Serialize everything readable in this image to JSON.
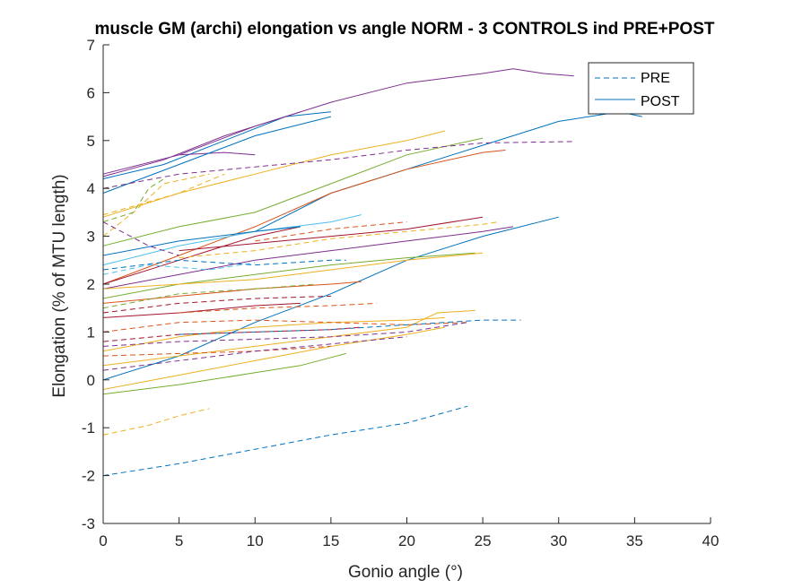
{
  "chart_data": {
    "type": "line",
    "title": "muscle GM (archi) elongation vs angle NORM - 3 CONTROLS ind PRE+POST",
    "xlabel": "Gonio angle (°)",
    "ylabel": "Elongation (% of MTU length)",
    "xlim": [
      0,
      40
    ],
    "ylim": [
      -3,
      7
    ],
    "xticks": [
      0,
      5,
      10,
      15,
      20,
      25,
      30,
      35,
      40
    ],
    "yticks": [
      -3,
      -2,
      -1,
      0,
      1,
      2,
      3,
      4,
      5,
      6,
      7
    ],
    "grid": false,
    "legend": {
      "placement": "top-right",
      "entries": [
        {
          "label": "PRE",
          "style": "dashed",
          "color": "#0072bd"
        },
        {
          "label": "POST",
          "style": "solid",
          "color": "#0072bd"
        }
      ]
    },
    "series": [
      {
        "style": "solid",
        "color": "#7e2f8e",
        "points": [
          [
            0,
            4.3
          ],
          [
            5,
            4.7
          ],
          [
            10,
            5.3
          ],
          [
            15,
            5.8
          ],
          [
            20,
            6.2
          ],
          [
            25,
            6.4
          ],
          [
            27,
            6.5
          ],
          [
            29,
            6.4
          ],
          [
            31,
            6.35
          ]
        ]
      },
      {
        "style": "solid",
        "color": "#0072bd",
        "points": [
          [
            0,
            4.2
          ],
          [
            4,
            4.5
          ],
          [
            8,
            5.0
          ],
          [
            12,
            5.5
          ],
          [
            15,
            5.6
          ]
        ]
      },
      {
        "style": "solid",
        "color": "#7e2f8e",
        "points": [
          [
            0,
            4.25
          ],
          [
            4,
            4.6
          ],
          [
            8,
            5.1
          ],
          [
            13,
            5.6
          ]
        ]
      },
      {
        "style": "solid",
        "color": "#7e2f8e",
        "points": [
          [
            5,
            4.7
          ],
          [
            8,
            4.75
          ],
          [
            10,
            4.7
          ]
        ]
      },
      {
        "style": "solid",
        "color": "#0072bd",
        "points": [
          [
            0,
            0.0
          ],
          [
            5,
            0.5
          ],
          [
            10,
            1.2
          ],
          [
            15,
            1.8
          ],
          [
            20,
            2.5
          ],
          [
            25,
            3.0
          ],
          [
            30,
            3.4
          ]
        ]
      },
      {
        "style": "solid",
        "color": "#0072bd",
        "points": [
          [
            0,
            3.9
          ],
          [
            5,
            4.5
          ],
          [
            10,
            5.1
          ],
          [
            15,
            5.5
          ]
        ]
      },
      {
        "style": "solid",
        "color": "#0072bd",
        "points": [
          [
            10,
            3.1
          ],
          [
            15,
            3.9
          ],
          [
            20,
            4.4
          ],
          [
            25,
            4.9
          ],
          [
            30,
            5.4
          ],
          [
            34,
            5.6
          ],
          [
            35.5,
            5.5
          ]
        ]
      },
      {
        "style": "solid",
        "color": "#edb120",
        "points": [
          [
            0,
            3.4
          ],
          [
            5,
            3.9
          ],
          [
            10,
            4.3
          ],
          [
            15,
            4.7
          ],
          [
            20,
            5.0
          ],
          [
            22.5,
            5.2
          ]
        ]
      },
      {
        "style": "solid",
        "color": "#77ac30",
        "points": [
          [
            0,
            2.8
          ],
          [
            5,
            3.2
          ],
          [
            10,
            3.5
          ],
          [
            15,
            4.1
          ],
          [
            20,
            4.7
          ],
          [
            25,
            5.05
          ]
        ]
      },
      {
        "style": "solid",
        "color": "#d95319",
        "points": [
          [
            0,
            2.0
          ],
          [
            5,
            2.6
          ],
          [
            10,
            3.2
          ],
          [
            15,
            3.9
          ],
          [
            20,
            4.4
          ],
          [
            25,
            4.75
          ],
          [
            26.5,
            4.8
          ]
        ]
      },
      {
        "style": "solid",
        "color": "#a2142f",
        "points": [
          [
            0,
            2.0
          ],
          [
            5,
            2.5
          ],
          [
            10,
            3.0
          ],
          [
            13,
            3.2
          ]
        ]
      },
      {
        "style": "solid",
        "color": "#4dbeee",
        "points": [
          [
            0,
            2.4
          ],
          [
            5,
            2.8
          ],
          [
            10,
            3.1
          ],
          [
            15,
            3.3
          ],
          [
            17,
            3.45
          ]
        ]
      },
      {
        "style": "solid",
        "color": "#0072bd",
        "points": [
          [
            0,
            2.6
          ],
          [
            5,
            2.9
          ],
          [
            10,
            3.1
          ],
          [
            13,
            3.2
          ]
        ]
      },
      {
        "style": "solid",
        "color": "#a2142f",
        "points": [
          [
            5,
            2.7
          ],
          [
            10,
            2.85
          ],
          [
            15,
            3.0
          ],
          [
            20,
            3.15
          ],
          [
            25,
            3.4
          ]
        ]
      },
      {
        "style": "solid",
        "color": "#7e2f8e",
        "points": [
          [
            0,
            1.9
          ],
          [
            5,
            2.2
          ],
          [
            10,
            2.5
          ],
          [
            15,
            2.7
          ],
          [
            20,
            2.9
          ],
          [
            25,
            3.1
          ],
          [
            27,
            3.2
          ]
        ]
      },
      {
        "style": "solid",
        "color": "#77ac30",
        "points": [
          [
            0,
            1.7
          ],
          [
            5,
            2.0
          ],
          [
            10,
            2.2
          ],
          [
            15,
            2.4
          ],
          [
            20,
            2.55
          ],
          [
            24.5,
            2.65
          ]
        ]
      },
      {
        "style": "solid",
        "color": "#edb120",
        "points": [
          [
            0,
            1.9
          ],
          [
            5,
            2.0
          ],
          [
            10,
            2.1
          ],
          [
            15,
            2.3
          ],
          [
            20,
            2.5
          ],
          [
            25,
            2.65
          ]
        ]
      },
      {
        "style": "solid",
        "color": "#d95319",
        "points": [
          [
            0,
            1.6
          ],
          [
            5,
            1.75
          ],
          [
            10,
            1.9
          ],
          [
            15,
            2.0
          ],
          [
            17,
            2.05
          ]
        ]
      },
      {
        "style": "solid",
        "color": "#a2142f",
        "points": [
          [
            0,
            1.3
          ],
          [
            5,
            1.4
          ],
          [
            10,
            1.55
          ],
          [
            13,
            1.6
          ]
        ]
      },
      {
        "style": "solid",
        "color": "#edb120",
        "points": [
          [
            0,
            0.6
          ],
          [
            5,
            0.9
          ],
          [
            10,
            1.1
          ],
          [
            15,
            1.2
          ],
          [
            20,
            1.25
          ],
          [
            22.5,
            1.3
          ]
        ]
      },
      {
        "style": "solid",
        "color": "#edb120",
        "points": [
          [
            0,
            0.3
          ],
          [
            5,
            0.5
          ],
          [
            10,
            0.7
          ],
          [
            15,
            0.9
          ],
          [
            20,
            1.1
          ],
          [
            22,
            1.4
          ],
          [
            24.5,
            1.45
          ]
        ]
      },
      {
        "style": "solid",
        "color": "#77ac30",
        "points": [
          [
            0,
            -0.3
          ],
          [
            5,
            -0.1
          ],
          [
            10,
            0.15
          ],
          [
            13,
            0.3
          ],
          [
            16,
            0.55
          ]
        ]
      },
      {
        "style": "solid",
        "color": "#edb120",
        "points": [
          [
            0,
            -0.2
          ],
          [
            5,
            0.1
          ],
          [
            10,
            0.4
          ],
          [
            15,
            0.7
          ],
          [
            20,
            0.95
          ],
          [
            22.5,
            1.1
          ]
        ]
      },
      {
        "style": "dashed",
        "color": "#7e2f8e",
        "points": [
          [
            0,
            4.0
          ],
          [
            5,
            4.3
          ],
          [
            10,
            4.45
          ],
          [
            15,
            4.6
          ],
          [
            20,
            4.8
          ],
          [
            25,
            4.95
          ],
          [
            31,
            4.98
          ]
        ]
      },
      {
        "style": "dashed",
        "color": "#edb120",
        "points": [
          [
            0,
            3.0
          ],
          [
            2,
            3.5
          ],
          [
            4,
            4.1
          ],
          [
            7,
            4.3
          ]
        ]
      },
      {
        "style": "dashed",
        "color": "#77ac30",
        "points": [
          [
            0,
            3.3
          ],
          [
            2,
            3.5
          ],
          [
            3,
            4.0
          ],
          [
            4,
            4.2
          ]
        ]
      },
      {
        "style": "dashed",
        "color": "#edb120",
        "points": [
          [
            0,
            3.45
          ],
          [
            5,
            3.9
          ],
          [
            8,
            4.3
          ]
        ]
      },
      {
        "style": "dashed",
        "color": "#7e2f8e",
        "points": [
          [
            0,
            3.3
          ],
          [
            3,
            2.8
          ],
          [
            5,
            2.6
          ]
        ]
      },
      {
        "style": "dashed",
        "color": "#0072bd",
        "points": [
          [
            0,
            2.3
          ],
          [
            5,
            2.5
          ],
          [
            10,
            2.4
          ],
          [
            15,
            2.5
          ],
          [
            16,
            2.5
          ]
        ]
      },
      {
        "style": "dashed",
        "color": "#edb120",
        "points": [
          [
            5,
            2.55
          ],
          [
            10,
            2.7
          ],
          [
            15,
            2.95
          ],
          [
            20,
            3.1
          ],
          [
            25,
            3.25
          ],
          [
            26,
            3.3
          ]
        ]
      },
      {
        "style": "dashed",
        "color": "#d95319",
        "points": [
          [
            10,
            2.9
          ],
          [
            15,
            3.15
          ],
          [
            20,
            3.3
          ]
        ]
      },
      {
        "style": "dashed",
        "color": "#4dbeee",
        "points": [
          [
            0,
            2.2
          ],
          [
            3,
            2.4
          ],
          [
            7,
            2.3
          ],
          [
            10,
            2.45
          ]
        ]
      },
      {
        "style": "dashed",
        "color": "#a2142f",
        "points": [
          [
            0,
            1.4
          ],
          [
            5,
            1.6
          ],
          [
            10,
            1.7
          ],
          [
            15,
            1.75
          ]
        ]
      },
      {
        "style": "dashed",
        "color": "#d95319",
        "points": [
          [
            5,
            1.4
          ],
          [
            10,
            1.5
          ],
          [
            15,
            1.55
          ],
          [
            18,
            1.6
          ]
        ]
      },
      {
        "style": "dashed",
        "color": "#77ac30",
        "points": [
          [
            0,
            1.5
          ],
          [
            5,
            1.8
          ],
          [
            10,
            1.9
          ],
          [
            14,
            2.0
          ]
        ]
      },
      {
        "style": "dashed",
        "color": "#d95319",
        "points": [
          [
            0,
            1.0
          ],
          [
            5,
            1.2
          ],
          [
            10,
            1.25
          ],
          [
            15,
            1.2
          ],
          [
            20,
            1.15
          ],
          [
            24,
            1.2
          ]
        ]
      },
      {
        "style": "dashed",
        "color": "#0072bd",
        "points": [
          [
            5,
            0.95
          ],
          [
            10,
            1.0
          ],
          [
            15,
            1.05
          ],
          [
            20,
            1.15
          ],
          [
            25,
            1.25
          ],
          [
            27.5,
            1.25
          ]
        ]
      },
      {
        "style": "dashed",
        "color": "#a2142f",
        "points": [
          [
            0,
            0.8
          ],
          [
            5,
            0.95
          ],
          [
            10,
            1.0
          ],
          [
            15,
            1.05
          ],
          [
            17,
            1.1
          ]
        ]
      },
      {
        "style": "dashed",
        "color": "#7e2f8e",
        "points": [
          [
            0,
            0.7
          ],
          [
            5,
            0.8
          ],
          [
            10,
            0.85
          ],
          [
            15,
            0.9
          ],
          [
            20,
            1.0
          ],
          [
            24,
            1.2
          ]
        ]
      },
      {
        "style": "dashed",
        "color": "#d95319",
        "points": [
          [
            0,
            0.5
          ],
          [
            5,
            0.55
          ],
          [
            10,
            0.6
          ],
          [
            15,
            0.7
          ]
        ]
      },
      {
        "style": "dashed",
        "color": "#7e2f8e",
        "points": [
          [
            0,
            0.2
          ],
          [
            5,
            0.4
          ],
          [
            10,
            0.6
          ],
          [
            15,
            0.75
          ],
          [
            20,
            0.9
          ]
        ]
      },
      {
        "style": "dashed",
        "color": "#edb120",
        "points": [
          [
            0,
            -1.15
          ],
          [
            3,
            -0.95
          ],
          [
            5,
            -0.75
          ],
          [
            7,
            -0.6
          ]
        ]
      },
      {
        "style": "dashed",
        "color": "#0072bd",
        "points": [
          [
            0,
            -2.0
          ],
          [
            5,
            -1.75
          ],
          [
            10,
            -1.45
          ],
          [
            15,
            -1.15
          ],
          [
            20,
            -0.9
          ],
          [
            24,
            -0.55
          ]
        ]
      }
    ]
  }
}
